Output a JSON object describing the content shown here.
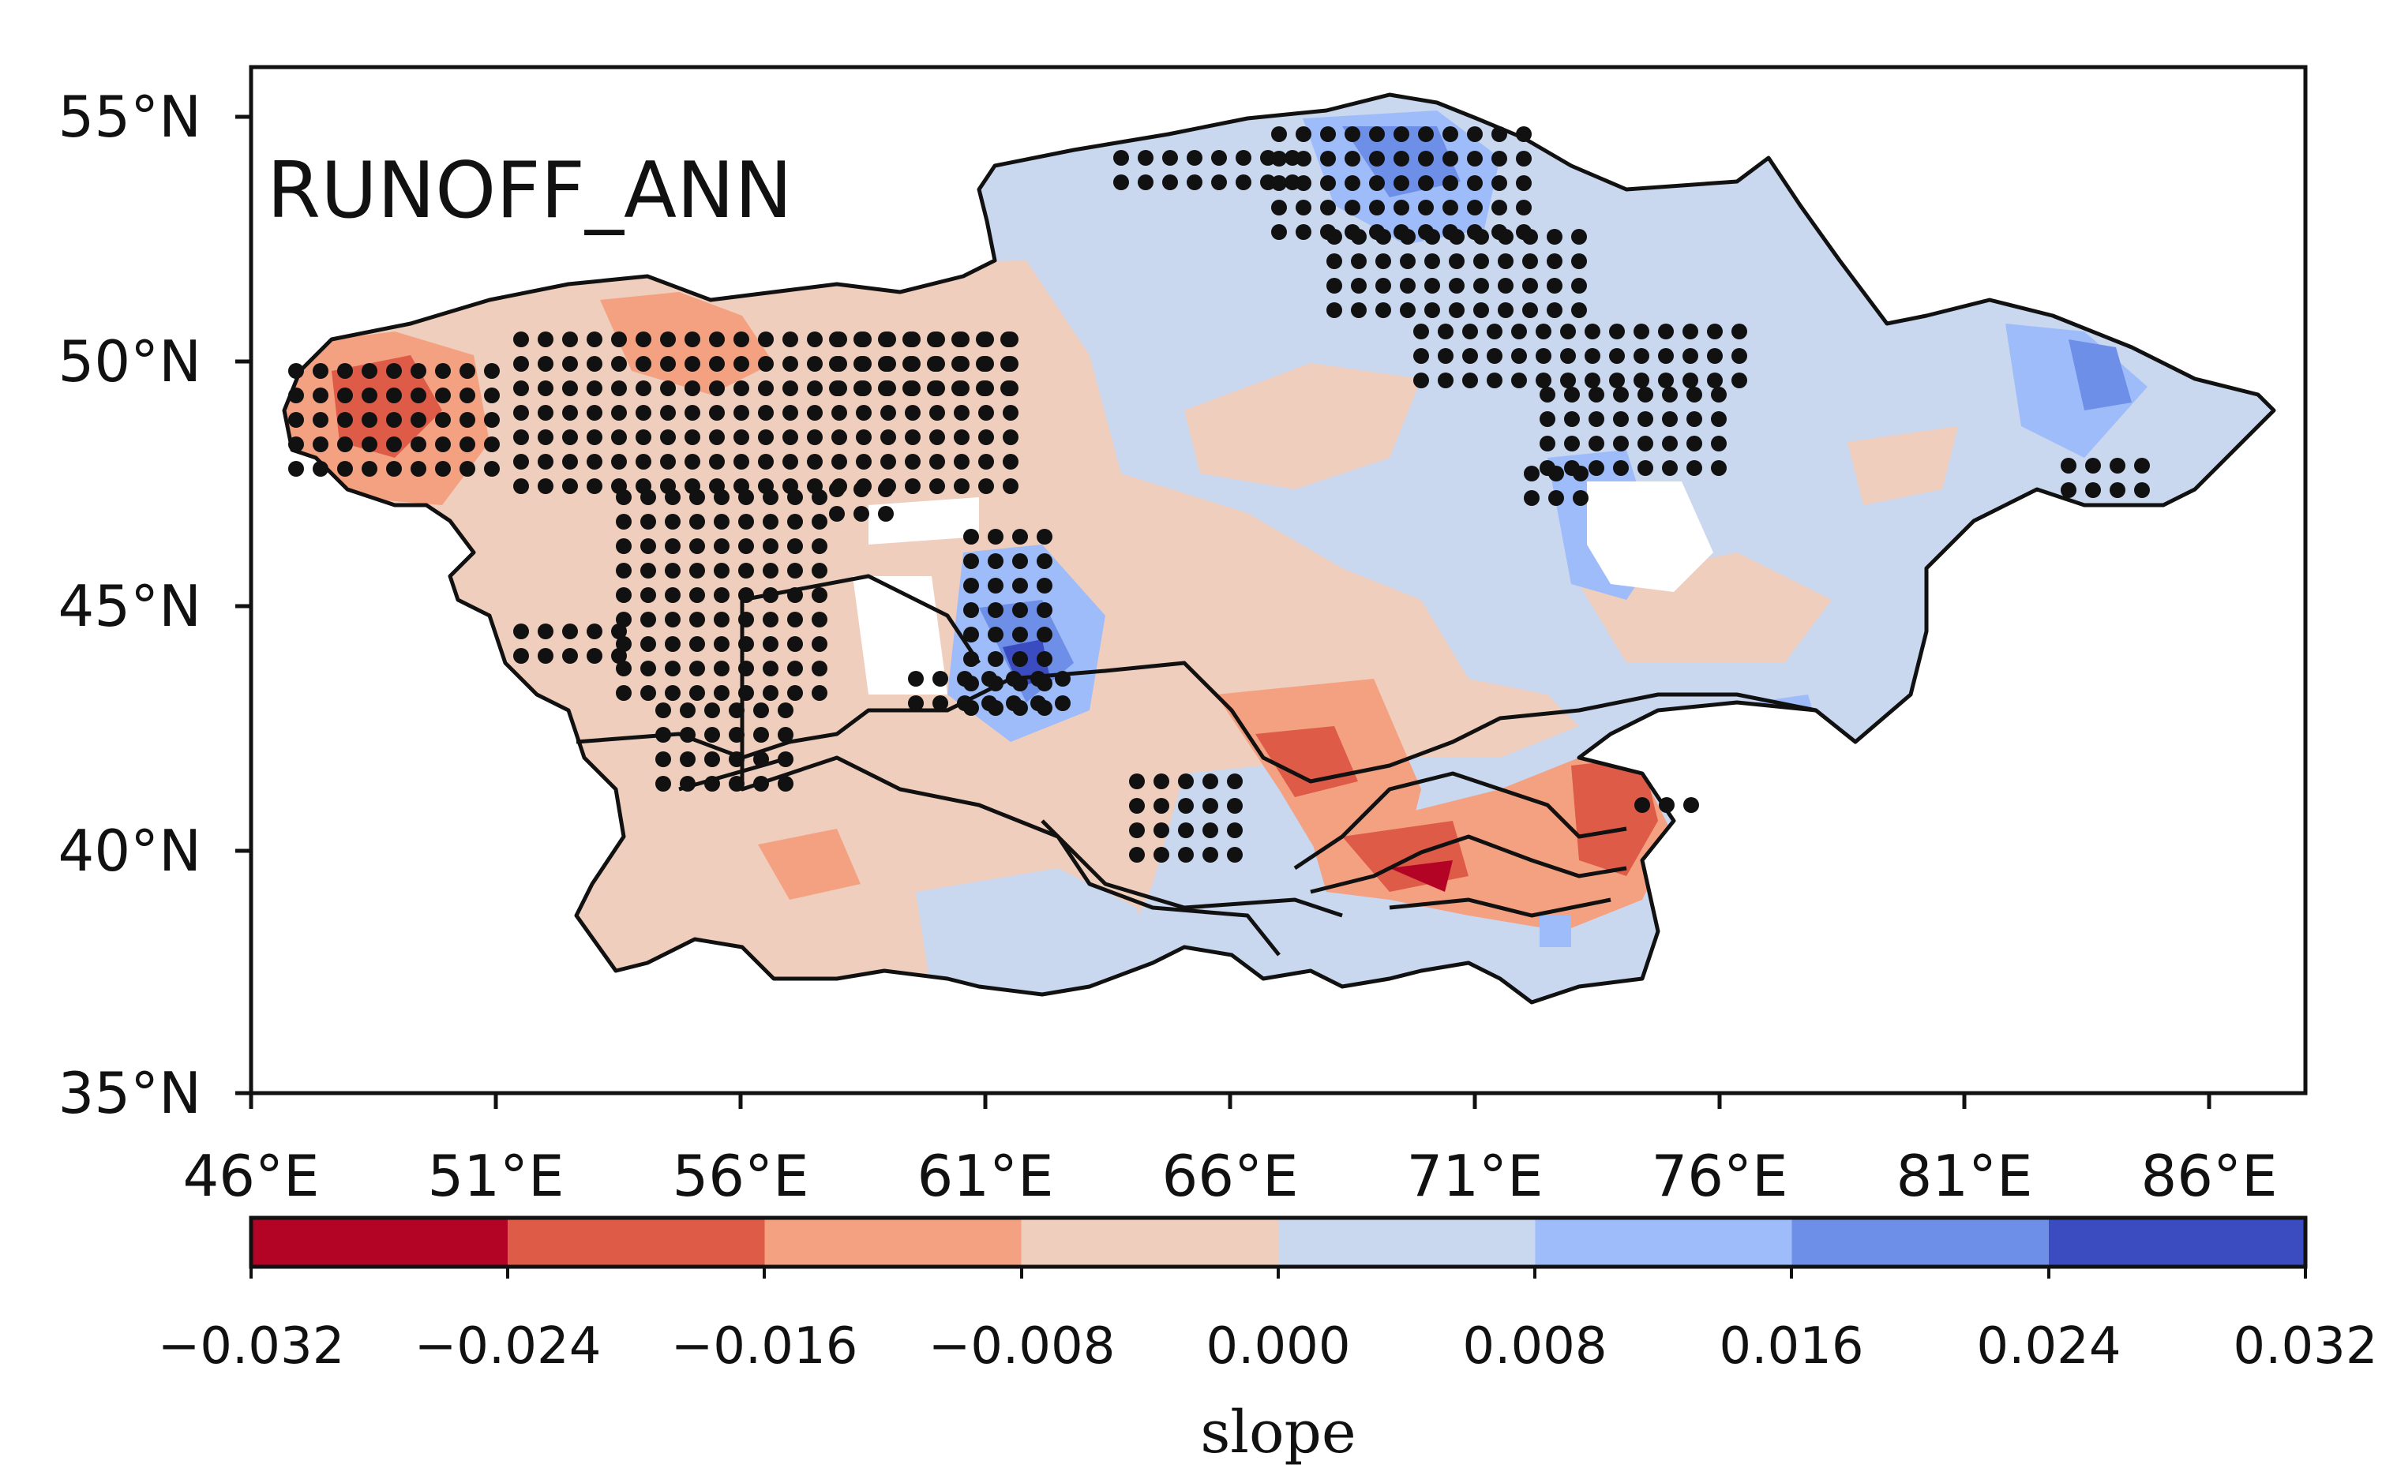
{
  "map": {
    "label": "RUNOFF_ANN",
    "lat_ticks": [
      "55°N",
      "50°N",
      "45°N",
      "40°N",
      "35°N"
    ],
    "lon_ticks": [
      "46°E",
      "51°E",
      "56°E",
      "61°E",
      "66°E",
      "71°E",
      "76°E",
      "81°E",
      "86°E"
    ],
    "lat_range": [
      35,
      56
    ],
    "lon_range": [
      46,
      88
    ]
  },
  "colorbar": {
    "title": "slope",
    "ticks": [
      "−0.032",
      "−0.024",
      "−0.016",
      "−0.008",
      "0.000",
      "0.008",
      "0.016",
      "0.024",
      "0.032"
    ],
    "bins": [
      {
        "from": -0.032,
        "to": -0.024,
        "color": "#b40426"
      },
      {
        "from": -0.024,
        "to": -0.016,
        "color": "#dd5b47"
      },
      {
        "from": -0.016,
        "to": -0.008,
        "color": "#f4a182"
      },
      {
        "from": -0.008,
        "to": 0.0,
        "color": "#efcebd"
      },
      {
        "from": 0.0,
        "to": 0.008,
        "color": "#c9d7ef"
      },
      {
        "from": 0.008,
        "to": 0.016,
        "color": "#9ebcf9"
      },
      {
        "from": 0.016,
        "to": 0.024,
        "color": "#6d8fe8"
      },
      {
        "from": 0.024,
        "to": 0.032,
        "color": "#3b4cc0"
      }
    ]
  }
}
